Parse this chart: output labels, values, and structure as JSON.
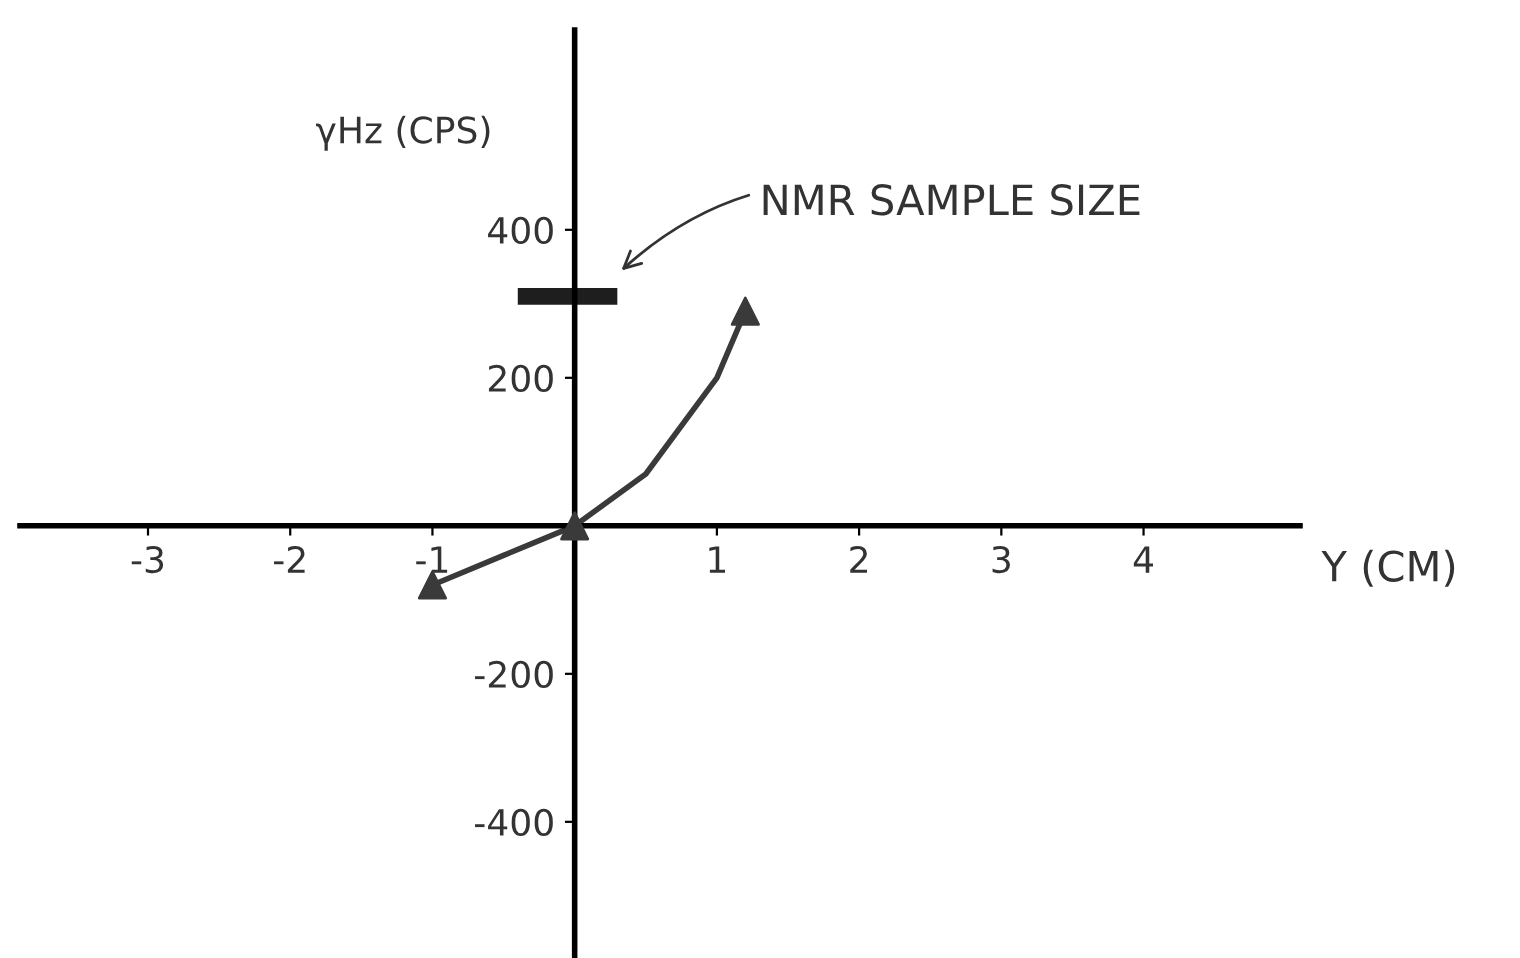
{
  "chart_data": {
    "type": "line",
    "xlabel": "Y (CM)",
    "ylabel": "γHz (CPS)",
    "series": [
      {
        "color": "#3a3a3a",
        "x": [
          -1,
          -0.5,
          0,
          0.5,
          1,
          1.2
        ],
        "values": [
          -80,
          -40,
          0,
          70,
          200,
          290
        ],
        "marker": "none"
      },
      {
        "type": "scatter",
        "color": "#3a3a3a",
        "x": [
          -1,
          0,
          1.2
        ],
        "values": [
          -80,
          0,
          290
        ],
        "marker": "triangle"
      },
      {
        "color": "#1e1e1e",
        "x": [
          -0.4,
          0.3
        ],
        "values": [
          310,
          310
        ],
        "marker": "none"
      }
    ],
    "annotations": [
      "NMR SAMPLE SIZE"
    ],
    "xlim": [
      -3.9,
      5.1
    ],
    "ylim": [
      -584,
      670
    ],
    "xticks": [
      -3,
      -2,
      -1,
      1,
      2,
      3,
      4
    ],
    "yticks": [
      -400,
      -200,
      200,
      400
    ],
    "grid": false,
    "legend": false
  }
}
